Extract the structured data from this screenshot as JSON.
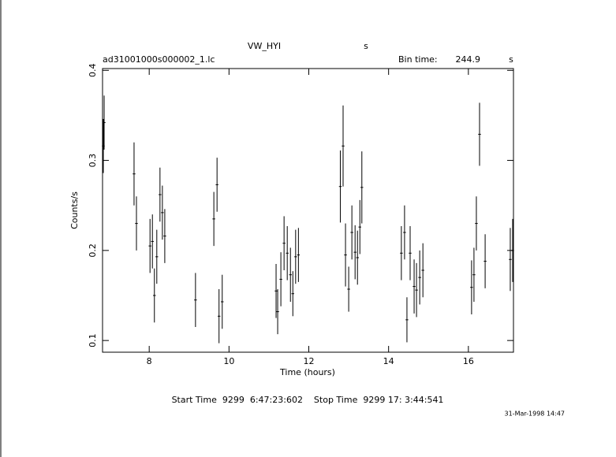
{
  "chart_data": {
    "type": "errorbar",
    "title": "VW_HYI",
    "title_unit": "s",
    "file": "ad31001000s000002_1.lc",
    "bin_label": "Bin time:",
    "bin_time": 244.9,
    "bin_unit": "s",
    "xlabel": "Time (hours)",
    "ylabel": "Counts/s",
    "footer": "Start Time  9299  6:47:23:602    Stop Time  9299 17: 3:44:541",
    "date": "31-Mar-1998 14:47",
    "xlim": [
      6.83,
      17.13
    ],
    "ylim": [
      0.087,
      0.402
    ],
    "xticks": [
      8,
      10,
      12,
      14,
      16
    ],
    "yticks": [
      0.1,
      0.2,
      0.3,
      0.4
    ],
    "color": "#000000",
    "x": [
      6.85,
      6.87,
      7.62,
      7.68,
      8.02,
      8.08,
      8.13,
      8.19,
      8.27,
      8.33,
      8.39,
      9.16,
      9.62,
      9.7,
      9.75,
      9.83,
      11.18,
      11.22,
      11.3,
      11.38,
      11.46,
      11.54,
      11.6,
      11.67,
      11.74,
      12.79,
      12.86,
      12.92,
      13.0,
      13.08,
      13.16,
      13.22,
      13.28,
      13.33,
      14.32,
      14.4,
      14.46,
      14.54,
      14.64,
      14.7,
      14.78,
      14.86,
      16.08,
      16.14,
      16.2,
      16.28,
      16.42,
      17.05,
      17.11
    ],
    "values": [
      0.316,
      0.342,
      0.285,
      0.23,
      0.205,
      0.21,
      0.15,
      0.193,
      0.262,
      0.242,
      0.216,
      0.145,
      0.235,
      0.273,
      0.127,
      0.143,
      0.155,
      0.132,
      0.168,
      0.208,
      0.197,
      0.173,
      0.152,
      0.193,
      0.195,
      0.271,
      0.316,
      0.195,
      0.157,
      0.22,
      0.198,
      0.192,
      0.226,
      0.27,
      0.197,
      0.22,
      0.123,
      0.197,
      0.16,
      0.156,
      0.17,
      0.178,
      0.159,
      0.173,
      0.23,
      0.329,
      0.188,
      0.19,
      0.2
    ],
    "errors": [
      0.03,
      0.03,
      0.035,
      0.03,
      0.03,
      0.03,
      0.03,
      0.03,
      0.03,
      0.03,
      0.03,
      0.03,
      0.03,
      0.03,
      0.03,
      0.03,
      0.03,
      0.025,
      0.03,
      0.03,
      0.03,
      0.03,
      0.025,
      0.03,
      0.03,
      0.04,
      0.045,
      0.035,
      0.025,
      0.03,
      0.03,
      0.03,
      0.03,
      0.04,
      0.03,
      0.03,
      0.025,
      0.03,
      0.03,
      0.03,
      0.03,
      0.03,
      0.03,
      0.03,
      0.03,
      0.035,
      0.03,
      0.035,
      0.035
    ]
  }
}
